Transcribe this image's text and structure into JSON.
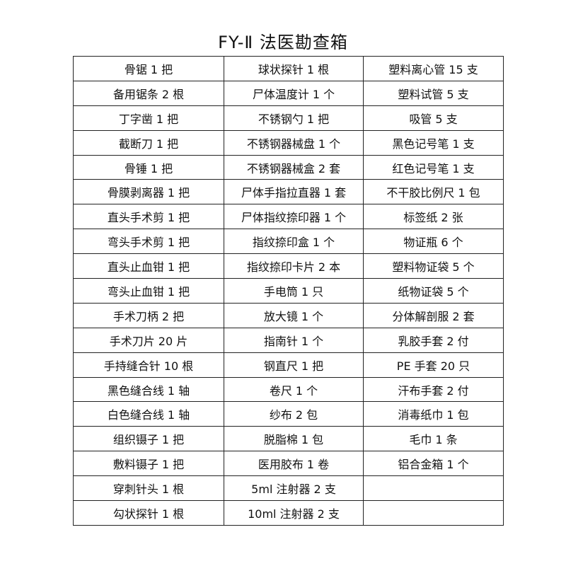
{
  "title": "FY-Ⅱ 法医勘查箱",
  "rows": [
    [
      "骨锯 1 把",
      "球状探针 1 根",
      "塑料离心管 15 支"
    ],
    [
      "备用锯条 2 根",
      "尸体温度计 1 个",
      "塑料试管 5 支"
    ],
    [
      "丁字凿 1 把",
      "不锈钢勺 1 把",
      "吸管 5 支"
    ],
    [
      "截断刀 1 把",
      "不锈钢器械盘 1 个",
      "黑色记号笔 1 支"
    ],
    [
      "骨锤 1 把",
      "不锈钢器械盒 2 套",
      "红色记号笔 1 支"
    ],
    [
      "骨膜剥离器 1 把",
      "尸体手指拉直器 1 套",
      "不干胶比例尺 1 包"
    ],
    [
      "直头手术剪 1 把",
      "尸体指纹捺印器 1 个",
      "标签纸 2 张"
    ],
    [
      "弯头手术剪 1 把",
      "指纹捺印盒 1 个",
      "物证瓶 6 个"
    ],
    [
      "直头止血钳 1 把",
      "指纹捺印卡片 2 本",
      "塑料物证袋 5 个"
    ],
    [
      "弯头止血钳 1 把",
      "手电筒 1 只",
      "纸物证袋 5 个"
    ],
    [
      "手术刀柄 2 把",
      "放大镜 1 个",
      "分体解剖服 2 套"
    ],
    [
      "手术刀片 20 片",
      "指南针 1 个",
      "乳胶手套 2 付"
    ],
    [
      "手持缝合针 10 根",
      "钢直尺 1 把",
      "PE 手套 20 只"
    ],
    [
      "黑色缝合线 1 轴",
      "卷尺 1 个",
      "汗布手套 2 付"
    ],
    [
      "白色缝合线 1 轴",
      "纱布 2 包",
      "消毒纸巾 1 包"
    ],
    [
      "组织镊子 1 把",
      "脱脂棉 1 包",
      "毛巾 1 条"
    ],
    [
      "敷料镊子 1 把",
      "医用胶布 1 卷",
      "铝合金箱 1 个"
    ],
    [
      "穿刺针头 1 根",
      "5ml 注射器 2 支",
      ""
    ],
    [
      "勾状探针 1 根",
      "10ml 注射器 2 支",
      ""
    ]
  ]
}
